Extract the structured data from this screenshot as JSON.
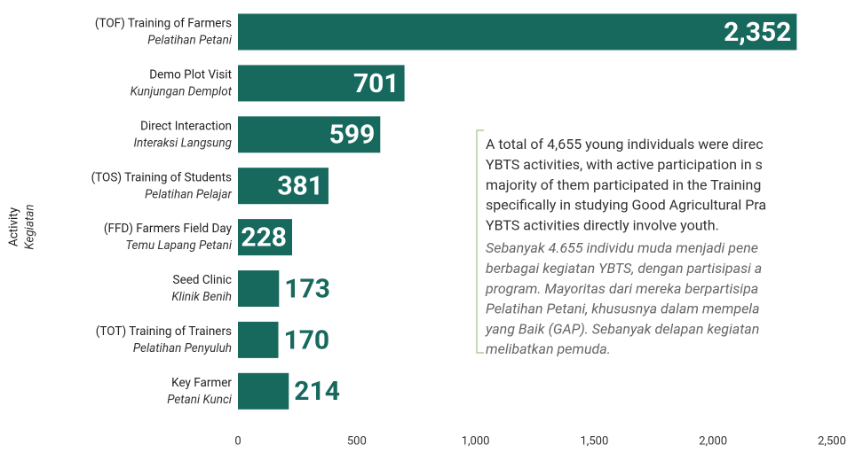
{
  "chart_data": {
    "type": "barh",
    "categories": [
      [
        "(TOF) Training of Farmers",
        "Pelatihan Petani"
      ],
      [
        "Demo Plot Visit",
        "Kunjungan Demplot"
      ],
      [
        "Direct Interaction",
        "Interaksi Langsung"
      ],
      [
        "(TOS) Training of Students",
        "Pelatihan Pelajar"
      ],
      [
        "(FFD) Farmers Field Day",
        "Temu Lapang Petani"
      ],
      [
        "Seed Clinic",
        "Klinik Benih"
      ],
      [
        "(TOT) Training of Trainers",
        "Pelatihan Penyuluh"
      ],
      [
        "Key Farmer",
        "Petani Kunci"
      ]
    ],
    "values": [
      2352,
      701,
      599,
      381,
      228,
      173,
      170,
      214
    ],
    "value_labels": [
      "2,352",
      "701",
      "599",
      "381",
      "228",
      "173",
      "170",
      "214"
    ],
    "color": "#17695e",
    "ylabel": [
      "Activity",
      "Kegiatan"
    ],
    "xlim": [
      0,
      2500
    ],
    "xticks": [
      0,
      500,
      {
        "value": 1000,
        "label": "1,000"
      },
      {
        "value": 1500,
        "label": "1,500"
      },
      {
        "value": 2000,
        "label": "2,000"
      },
      {
        "value": 2500,
        "label": "2,500"
      }
    ],
    "annotation": {
      "english": [
        "A total of 4,655 young individuals were direc",
        "YBTS activities, with active participation in s",
        "majority of them participated in the Training",
        "specifically in studying Good Agricultural Pra",
        "YBTS activities directly involve youth."
      ],
      "indonesian": [
        "Sebanyak 4.655 individu muda menjadi pene",
        "berbagai kegiatan YBTS, dengan partisipasi a",
        "program. Mayoritas dari mereka berpartisipa",
        "Pelatihan Petani, khususnya dalam mempela",
        "yang Baik (GAP). Sebanyak delapan kegiatan",
        "melibatkan pemuda."
      ]
    }
  }
}
